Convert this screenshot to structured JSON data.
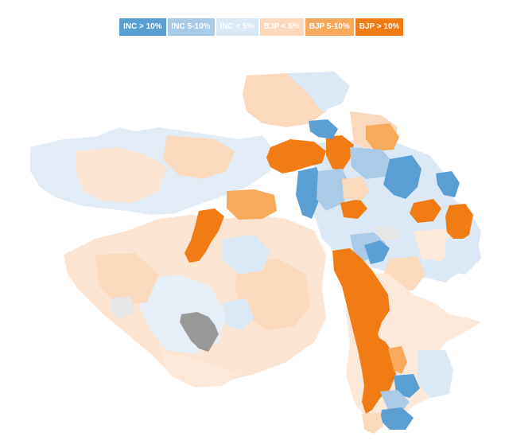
{
  "legend": {
    "items": [
      {
        "label": "INC > 10%",
        "color": "#5a9fd4"
      },
      {
        "label": "INC 5-10%",
        "color": "#a9cbe8"
      },
      {
        "label": "INC < 5%",
        "color": "#dbe8f5"
      },
      {
        "label": "BJP < 5%",
        "color": "#fbd9bd"
      },
      {
        "label": "BJP 5-10%",
        "color": "#f7a95c"
      },
      {
        "label": "BJP > 10%",
        "color": "#f27c14"
      }
    ]
  },
  "colors": {
    "inc_high": "#5a9fd4",
    "inc_mid": "#a9cbe8",
    "inc_low": "#dbe8f5",
    "bjp_low": "#fbd9bd",
    "bjp_mid": "#f7a95c",
    "bjp_high": "#f27c14",
    "no_data": "#999999",
    "neutral": "#e6e6e6"
  }
}
